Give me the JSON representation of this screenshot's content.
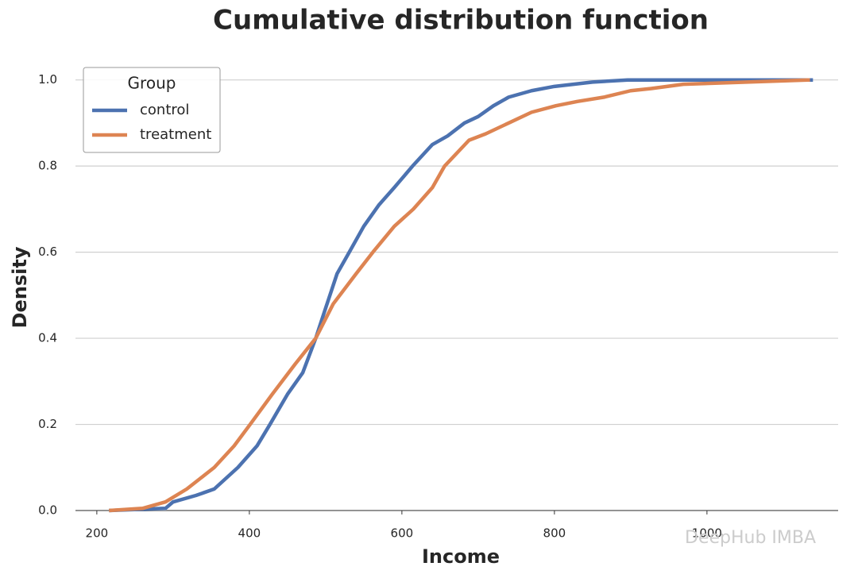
{
  "chart_data": {
    "type": "line",
    "title": "Cumulative distribution function",
    "x_label": "Income",
    "y_label": "Density",
    "legend_title": "Group",
    "legend_position": "upper left",
    "grid": true,
    "xlim": [
      172,
      1172
    ],
    "ylim": [
      0,
      1.04
    ],
    "xticks": [
      200,
      400,
      600,
      800,
      1000
    ],
    "yticks": [
      {
        "value": 0,
        "label": "0.0"
      },
      0.2,
      0.4,
      0.6,
      0.8,
      {
        "value": 1,
        "label": "1.0"
      }
    ],
    "series": [
      {
        "name": "control",
        "color": "#4c72b0",
        "x": [
          216,
          290,
          300,
          330,
          354,
          385,
          410,
          427,
          450,
          470,
          487,
          500,
          515,
          531,
          550,
          570,
          590,
          614,
          640,
          660,
          682,
          700,
          720,
          740,
          770,
          800,
          850,
          896,
          1139
        ],
        "values": [
          0,
          0.005,
          0.02,
          0.035,
          0.05,
          0.1,
          0.15,
          0.2,
          0.27,
          0.32,
          0.4,
          0.47,
          0.55,
          0.6,
          0.66,
          0.71,
          0.75,
          0.8,
          0.85,
          0.87,
          0.9,
          0.915,
          0.94,
          0.96,
          0.975,
          0.985,
          0.995,
          1,
          1
        ]
      },
      {
        "name": "treatment",
        "color": "#dd8452",
        "x": [
          216,
          260,
          290,
          318,
          354,
          380,
          401,
          430,
          460,
          487,
          510,
          540,
          562,
          590,
          615,
          640,
          656,
          688,
          710,
          740,
          770,
          802,
          830,
          865,
          900,
          927,
          969,
          1135
        ],
        "values": [
          0,
          0.005,
          0.02,
          0.05,
          0.1,
          0.15,
          0.2,
          0.27,
          0.34,
          0.4,
          0.48,
          0.55,
          0.6,
          0.66,
          0.7,
          0.75,
          0.8,
          0.86,
          0.875,
          0.9,
          0.925,
          0.94,
          0.95,
          0.96,
          0.975,
          0.98,
          0.99,
          1
        ]
      }
    ]
  },
  "watermark": "DeepHub IMBA"
}
